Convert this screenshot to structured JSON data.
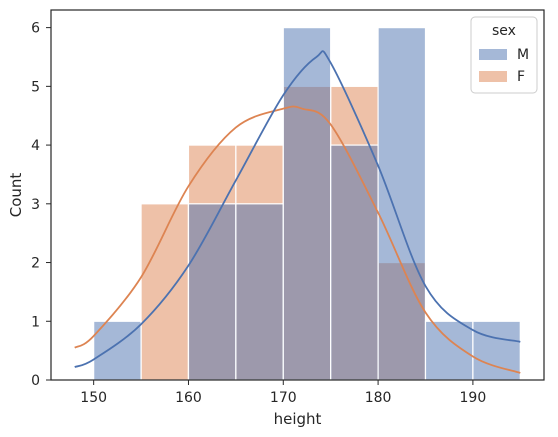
{
  "chart_data": {
    "type": "histogram",
    "xlabel": "height",
    "ylabel": "Count",
    "xlim": [
      145.5,
      197.5
    ],
    "ylim": [
      0,
      6.3
    ],
    "xticks": [
      150,
      160,
      170,
      180,
      190
    ],
    "yticks": [
      0,
      1,
      2,
      3,
      4,
      5,
      6
    ],
    "grid": false,
    "bin_edges": [
      150,
      155,
      160,
      165,
      170,
      175,
      180,
      185,
      190,
      195
    ],
    "legend": {
      "title": "sex",
      "placement": "top-right"
    },
    "series": [
      {
        "name": "M",
        "color": "#4c72b0",
        "counts": [
          1,
          0,
          3,
          3,
          6,
          4,
          6,
          1,
          1
        ],
        "kde": {
          "x": [
            148,
            150,
            155,
            160,
            165,
            170,
            173.5,
            175,
            180,
            185,
            190,
            195
          ],
          "y": [
            0.22,
            0.35,
            0.95,
            1.95,
            3.4,
            4.85,
            5.5,
            5.4,
            3.65,
            1.6,
            0.85,
            0.65
          ]
        }
      },
      {
        "name": "F",
        "color": "#dd8452",
        "counts": [
          0,
          3,
          4,
          4,
          5,
          5,
          2,
          0,
          0
        ],
        "kde": {
          "x": [
            148,
            150,
            155,
            160,
            165,
            170,
            172,
            175,
            180,
            185,
            190,
            195
          ],
          "y": [
            0.55,
            0.75,
            1.75,
            3.3,
            4.3,
            4.62,
            4.62,
            4.35,
            2.85,
            1.15,
            0.4,
            0.12
          ]
        }
      }
    ]
  }
}
